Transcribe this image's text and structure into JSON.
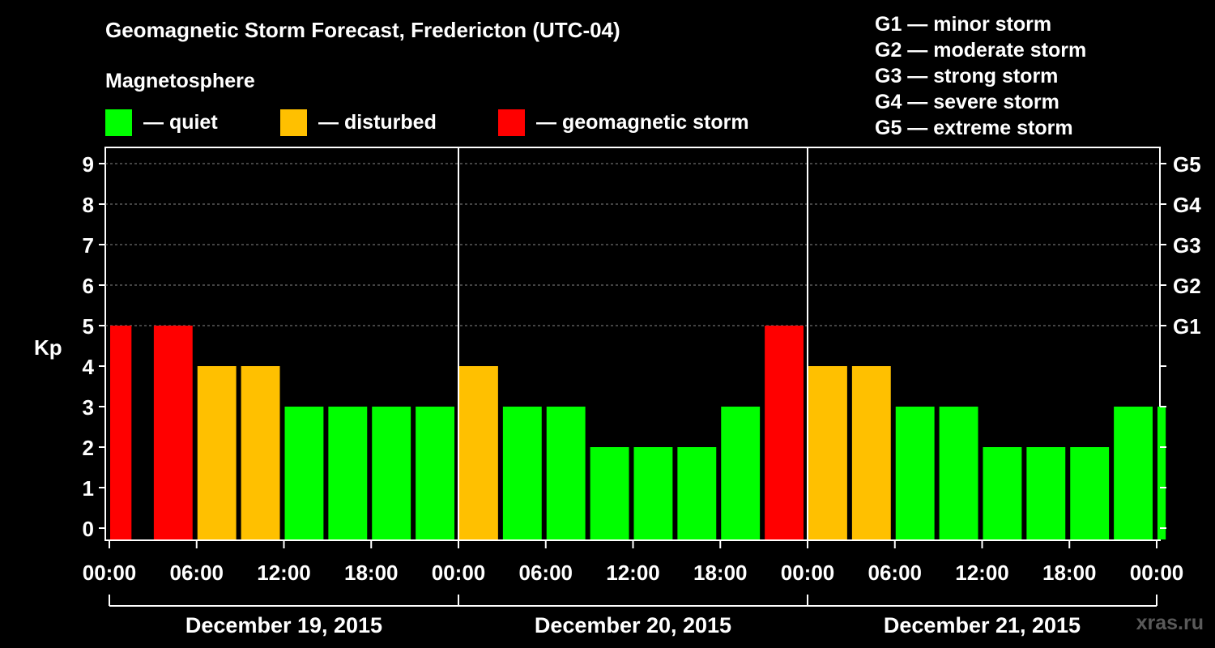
{
  "title": "Geomagnetic Storm Forecast, Fredericton (UTC-04)",
  "subtitle": "Magnetosphere",
  "legend": [
    {
      "color": "#00ff00",
      "label": "— quiet"
    },
    {
      "color": "#ffc000",
      "label": "— disturbed"
    },
    {
      "color": "#ff0000",
      "label": "— geomagnetic storm"
    }
  ],
  "storm_scale": [
    "G1 — minor storm",
    "G2 — moderate storm",
    "G3 — strong storm",
    "G4 — severe storm",
    "G5 — extreme storm"
  ],
  "watermark": "xras.ru",
  "chart_data": {
    "type": "bar",
    "ylabel": "Kp",
    "ylim": [
      0,
      9
    ],
    "yticks": [
      0,
      1,
      2,
      3,
      4,
      5,
      6,
      7,
      8,
      9
    ],
    "right_ticks": [
      {
        "kp": 5,
        "label": "G1"
      },
      {
        "kp": 6,
        "label": "G2"
      },
      {
        "kp": 7,
        "label": "G3"
      },
      {
        "kp": 8,
        "label": "G4"
      },
      {
        "kp": 9,
        "label": "G5"
      }
    ],
    "x_tick_labels": [
      "00:00",
      "06:00",
      "12:00",
      "18:00",
      "00:00",
      "06:00",
      "12:00",
      "18:00",
      "00:00",
      "06:00",
      "12:00",
      "18:00",
      "00:00"
    ],
    "days": [
      "December 19, 2015",
      "December 20, 2015",
      "December 21, 2015"
    ],
    "grid": true,
    "legend_position": "top",
    "bars": [
      {
        "start_hour": 0,
        "end_hour": 1.8,
        "kp": 5,
        "level": "storm"
      },
      {
        "start_hour": 3,
        "end_hour": 6,
        "kp": 5,
        "level": "storm"
      },
      {
        "start_hour": 6,
        "end_hour": 9,
        "kp": 4,
        "level": "disturbed"
      },
      {
        "start_hour": 9,
        "end_hour": 12,
        "kp": 4,
        "level": "disturbed"
      },
      {
        "start_hour": 12,
        "end_hour": 15,
        "kp": 3,
        "level": "quiet"
      },
      {
        "start_hour": 15,
        "end_hour": 18,
        "kp": 3,
        "level": "quiet"
      },
      {
        "start_hour": 18,
        "end_hour": 21,
        "kp": 3,
        "level": "quiet"
      },
      {
        "start_hour": 21,
        "end_hour": 24,
        "kp": 3,
        "level": "quiet"
      },
      {
        "start_hour": 24,
        "end_hour": 27,
        "kp": 4,
        "level": "disturbed"
      },
      {
        "start_hour": 27,
        "end_hour": 30,
        "kp": 3,
        "level": "quiet"
      },
      {
        "start_hour": 30,
        "end_hour": 33,
        "kp": 3,
        "level": "quiet"
      },
      {
        "start_hour": 33,
        "end_hour": 36,
        "kp": 2,
        "level": "quiet"
      },
      {
        "start_hour": 36,
        "end_hour": 39,
        "kp": 2,
        "level": "quiet"
      },
      {
        "start_hour": 39,
        "end_hour": 42,
        "kp": 2,
        "level": "quiet"
      },
      {
        "start_hour": 42,
        "end_hour": 45,
        "kp": 3,
        "level": "quiet"
      },
      {
        "start_hour": 45,
        "end_hour": 48,
        "kp": 5,
        "level": "storm"
      },
      {
        "start_hour": 48,
        "end_hour": 51,
        "kp": 4,
        "level": "disturbed"
      },
      {
        "start_hour": 51,
        "end_hour": 54,
        "kp": 4,
        "level": "disturbed"
      },
      {
        "start_hour": 54,
        "end_hour": 57,
        "kp": 3,
        "level": "quiet"
      },
      {
        "start_hour": 57,
        "end_hour": 60,
        "kp": 3,
        "level": "quiet"
      },
      {
        "start_hour": 60,
        "end_hour": 63,
        "kp": 2,
        "level": "quiet"
      },
      {
        "start_hour": 63,
        "end_hour": 66,
        "kp": 2,
        "level": "quiet"
      },
      {
        "start_hour": 66,
        "end_hour": 69,
        "kp": 2,
        "level": "quiet"
      },
      {
        "start_hour": 69,
        "end_hour": 72,
        "kp": 3,
        "level": "quiet"
      },
      {
        "start_hour": 72,
        "end_hour": 72.9,
        "kp": 3,
        "level": "quiet"
      }
    ],
    "level_colors": {
      "quiet": "#00ff00",
      "disturbed": "#ffc000",
      "storm": "#ff0000"
    }
  }
}
